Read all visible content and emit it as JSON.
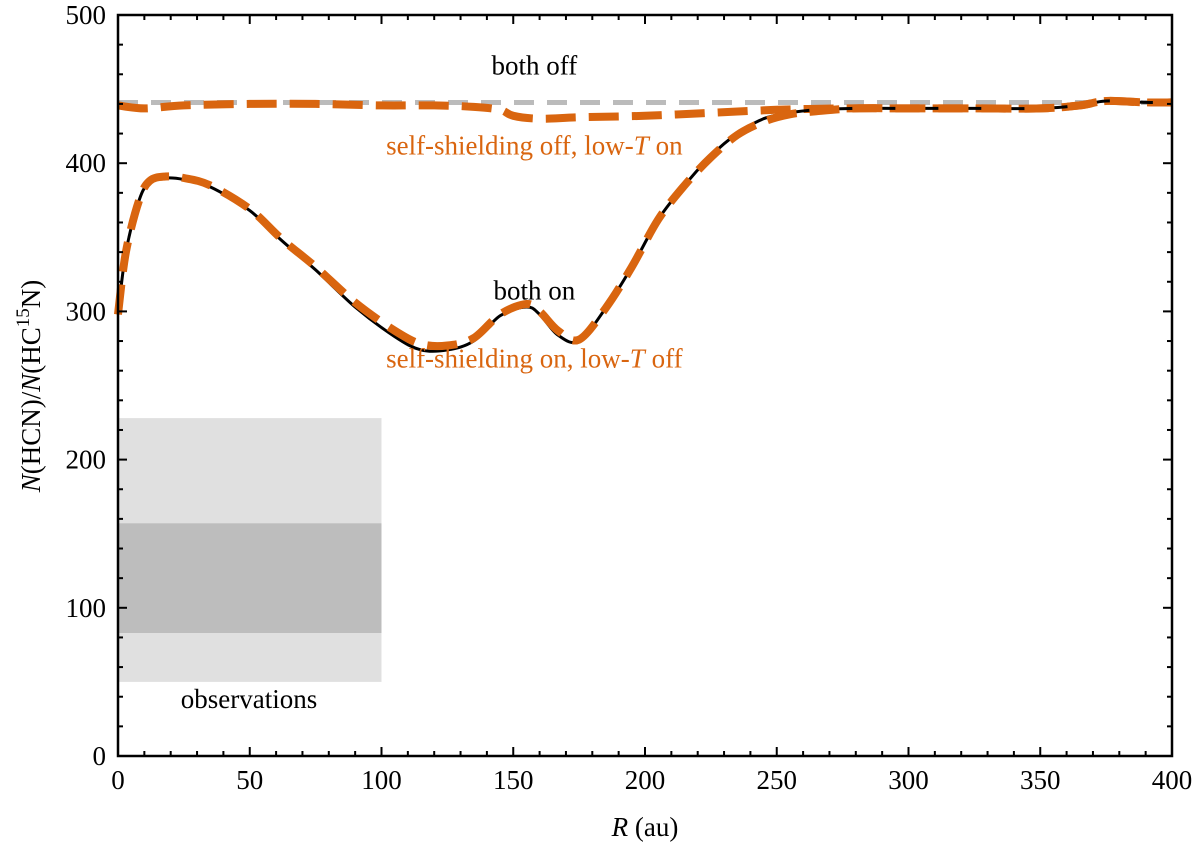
{
  "chart_data": {
    "type": "line",
    "xlabel_italic": "R",
    "xlabel_rest": " (au)",
    "ylabel_n1": "N",
    "ylabel_mid1": "(HCN)/",
    "ylabel_n2": "N",
    "ylabel_mid2": "(HC",
    "ylabel_sup": "15",
    "ylabel_end": "N)",
    "xlim": [
      0,
      400
    ],
    "ylim": [
      0,
      500
    ],
    "xticks": [
      "0",
      "50",
      "100",
      "150",
      "200",
      "250",
      "300",
      "350",
      "400"
    ],
    "yticks": [
      "0",
      "100",
      "200",
      "300",
      "400",
      "500"
    ],
    "observations": {
      "label": "observations",
      "outer_band": {
        "x": [
          0,
          100
        ],
        "y": [
          50,
          228
        ],
        "color": "#e0e0e0"
      },
      "inner_band": {
        "x": [
          0,
          100
        ],
        "y": [
          83,
          157
        ],
        "color": "#bdbdbd"
      }
    },
    "series": [
      {
        "name": "both off",
        "color": "#bbbbbb",
        "style": "dashed",
        "x": [
          0,
          400
        ],
        "y": [
          441,
          441
        ]
      },
      {
        "name": "self-shielding off, low-T on",
        "color": "#d9650f",
        "style": "dashed",
        "x": [
          0,
          10,
          25,
          50,
          75,
          100,
          120,
          135,
          145,
          150,
          160,
          175,
          200,
          225,
          250,
          275,
          300,
          325,
          350,
          365,
          375,
          390,
          400
        ],
        "y": [
          439,
          437,
          439,
          440,
          440,
          439,
          439,
          438,
          436,
          432,
          430,
          431,
          432,
          434,
          436,
          437,
          437,
          437,
          437,
          439,
          442,
          441,
          441
        ]
      },
      {
        "name": "both on",
        "color": "#000000",
        "style": "solid",
        "x": [
          0,
          3,
          8,
          12,
          18,
          25,
          35,
          50,
          62,
          75,
          90,
          105,
          115,
          125,
          135,
          145,
          155,
          160,
          167,
          175,
          185,
          195,
          205,
          215,
          225,
          235,
          245,
          255,
          265,
          280,
          300,
          325,
          350,
          365,
          375,
          390,
          400
        ],
        "y": [
          298,
          340,
          375,
          387,
          390,
          389,
          384,
          368,
          348,
          328,
          303,
          283,
          274,
          274,
          280,
          297,
          303,
          298,
          284,
          280,
          302,
          330,
          362,
          385,
          405,
          420,
          430,
          434,
          436,
          437,
          437,
          437,
          437,
          439,
          442,
          441,
          441
        ]
      },
      {
        "name": "self-shielding on, low-T off",
        "color": "#d9650f",
        "style": "dashed",
        "x": [
          0,
          3,
          8,
          12,
          18,
          25,
          35,
          50,
          62,
          75,
          90,
          105,
          115,
          125,
          135,
          145,
          155,
          160,
          167,
          175,
          185,
          195,
          205,
          215,
          225,
          235,
          245,
          255,
          265,
          280,
          300,
          325,
          350,
          365,
          375,
          390,
          400
        ],
        "y": [
          298,
          340,
          375,
          388,
          391,
          390,
          385,
          369,
          349,
          330,
          306,
          287,
          278,
          277,
          282,
          298,
          305,
          300,
          287,
          281,
          302,
          330,
          362,
          385,
          404,
          419,
          428,
          433,
          435,
          437,
          437,
          437,
          437,
          439,
          442,
          441,
          441
        ]
      }
    ],
    "annotations": [
      {
        "text": "both off",
        "color": "#000000",
        "x": 158,
        "y": 460
      },
      {
        "text_pre": "self-shielding off, low-",
        "text_italic": "T",
        "text_post": " on",
        "color": "#d9650f",
        "x": 158,
        "y": 406
      },
      {
        "text": "both on",
        "color": "#000000",
        "x": 158,
        "y": 308
      },
      {
        "text_pre": "self-shielding on, low-",
        "text_italic": "T",
        "text_post": " off",
        "color": "#d9650f",
        "x": 158,
        "y": 262
      }
    ]
  }
}
